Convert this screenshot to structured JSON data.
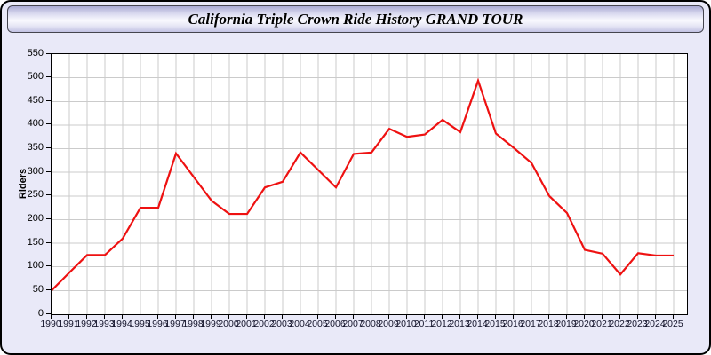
{
  "window": {
    "title": "California Triple Crown Ride History GRAND TOUR"
  },
  "colors": {
    "line": "#ee1111",
    "panel_background": "#e9e9f8",
    "plot_background": "#ffffff",
    "gridline": "#cbcbcb",
    "axis": "#000000",
    "header_gradient_top": "#a9a9d4",
    "header_gradient_middle": "#f9f9fe",
    "header_gradient_bottom": "#c2c2e3"
  },
  "chart_data": {
    "type": "line",
    "title": "California Triple Crown Ride History GRAND TOUR",
    "x": [
      1990,
      1991,
      1992,
      1993,
      1994,
      1995,
      1996,
      1997,
      1998,
      1999,
      2000,
      2001,
      2002,
      2003,
      2004,
      2005,
      2006,
      2007,
      2008,
      2009,
      2010,
      2011,
      2012,
      2013,
      2014,
      2015,
      2016,
      2017,
      2018,
      2019,
      2020,
      2021,
      2022,
      2023,
      2024,
      2025
    ],
    "series": [
      {
        "name": "Riders",
        "values": [
          50,
          88,
          125,
          125,
          160,
          225,
          225,
          340,
          290,
          240,
          212,
          212,
          268,
          280,
          342,
          305,
          268,
          339,
          342,
          392,
          375,
          380,
          411,
          385,
          494,
          382,
          352,
          320,
          250,
          214,
          136,
          128,
          84,
          129,
          124,
          124
        ]
      }
    ],
    "xlabel": "",
    "ylabel": "Riders",
    "ylim": [
      0,
      550
    ],
    "ytick_step": 50,
    "xtick_step_years": 1,
    "grid": true,
    "legend_position": "none"
  }
}
